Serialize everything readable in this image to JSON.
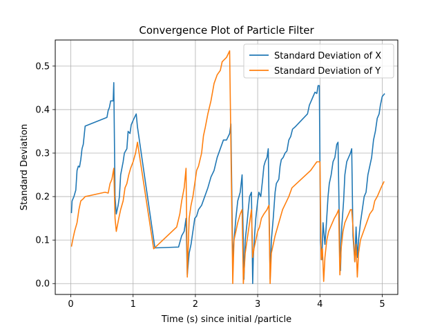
{
  "chart_data": {
    "type": "line",
    "title": "Convergence Plot of Particle Filter",
    "xlabel": "Time (s) since initial /particle",
    "ylabel": "Standard Deviation",
    "xlim": [
      -0.25,
      5.25
    ],
    "ylim": [
      -0.025,
      0.56
    ],
    "xticks": [
      0,
      1,
      2,
      3,
      4,
      5
    ],
    "yticks": [
      0.0,
      0.1,
      0.2,
      0.3,
      0.4,
      0.5
    ],
    "xtick_labels": [
      "0",
      "1",
      "2",
      "3",
      "4",
      "5"
    ],
    "ytick_labels": [
      "0.0",
      "0.1",
      "0.2",
      "0.3",
      "0.4",
      "0.5"
    ],
    "grid": true,
    "legend_position": "top-right",
    "series": [
      {
        "name": "Standard Deviation of X",
        "color": "#1f77b4",
        "points": [
          [
            0.01,
            0.162
          ],
          [
            0.02,
            0.19
          ],
          [
            0.05,
            0.2
          ],
          [
            0.08,
            0.215
          ],
          [
            0.1,
            0.26
          ],
          [
            0.12,
            0.27
          ],
          [
            0.14,
            0.268
          ],
          [
            0.16,
            0.285
          ],
          [
            0.18,
            0.31
          ],
          [
            0.2,
            0.32
          ],
          [
            0.23,
            0.362
          ],
          [
            0.58,
            0.382
          ],
          [
            0.6,
            0.398
          ],
          [
            0.62,
            0.405
          ],
          [
            0.64,
            0.42
          ],
          [
            0.66,
            0.42
          ],
          [
            0.68,
            0.42
          ],
          [
            0.69,
            0.462
          ],
          [
            0.71,
            0.2
          ],
          [
            0.73,
            0.16
          ],
          [
            0.76,
            0.18
          ],
          [
            0.78,
            0.2
          ],
          [
            0.8,
            0.25
          ],
          [
            0.84,
            0.28
          ],
          [
            0.86,
            0.3
          ],
          [
            0.9,
            0.31
          ],
          [
            0.92,
            0.35
          ],
          [
            0.95,
            0.345
          ],
          [
            0.97,
            0.365
          ],
          [
            1.0,
            0.375
          ],
          [
            1.05,
            0.39
          ],
          [
            1.07,
            0.36
          ],
          [
            1.35,
            0.082
          ],
          [
            1.73,
            0.084
          ],
          [
            1.78,
            0.11
          ],
          [
            1.82,
            0.12
          ],
          [
            1.85,
            0.15
          ],
          [
            1.87,
            0.02
          ],
          [
            1.9,
            0.07
          ],
          [
            1.93,
            0.09
          ],
          [
            1.96,
            0.12
          ],
          [
            1.99,
            0.15
          ],
          [
            2.02,
            0.155
          ],
          [
            2.05,
            0.17
          ],
          [
            2.1,
            0.18
          ],
          [
            2.15,
            0.2
          ],
          [
            2.2,
            0.22
          ],
          [
            2.25,
            0.245
          ],
          [
            2.3,
            0.26
          ],
          [
            2.35,
            0.29
          ],
          [
            2.4,
            0.31
          ],
          [
            2.45,
            0.33
          ],
          [
            2.5,
            0.33
          ],
          [
            2.55,
            0.345
          ],
          [
            2.57,
            0.367
          ],
          [
            2.6,
            0.05
          ],
          [
            2.62,
            0.1
          ],
          [
            2.65,
            0.15
          ],
          [
            2.68,
            0.19
          ],
          [
            2.72,
            0.21
          ],
          [
            2.75,
            0.25
          ],
          [
            2.78,
            0.01
          ],
          [
            2.8,
            0.1
          ],
          [
            2.83,
            0.14
          ],
          [
            2.87,
            0.2
          ],
          [
            2.9,
            0.21
          ],
          [
            2.92,
            0.0
          ],
          [
            2.93,
            0.06
          ],
          [
            2.95,
            0.11
          ],
          [
            2.97,
            0.15
          ],
          [
            3.0,
            0.19
          ],
          [
            3.02,
            0.21
          ],
          [
            3.05,
            0.2
          ],
          [
            3.08,
            0.24
          ],
          [
            3.1,
            0.27
          ],
          [
            3.12,
            0.28
          ],
          [
            3.15,
            0.29
          ],
          [
            3.17,
            0.31
          ],
          [
            3.2,
            0.01
          ],
          [
            3.22,
            0.1
          ],
          [
            3.25,
            0.15
          ],
          [
            3.28,
            0.21
          ],
          [
            3.3,
            0.23
          ],
          [
            3.34,
            0.24
          ],
          [
            3.36,
            0.27
          ],
          [
            3.38,
            0.285
          ],
          [
            3.41,
            0.29
          ],
          [
            3.44,
            0.3
          ],
          [
            3.47,
            0.305
          ],
          [
            3.5,
            0.33
          ],
          [
            3.53,
            0.338
          ],
          [
            3.56,
            0.355
          ],
          [
            3.6,
            0.36
          ],
          [
            3.8,
            0.39
          ],
          [
            3.83,
            0.41
          ],
          [
            3.86,
            0.42
          ],
          [
            3.89,
            0.43
          ],
          [
            3.92,
            0.44
          ],
          [
            3.95,
            0.437
          ],
          [
            3.97,
            0.455
          ],
          [
            3.99,
            0.455
          ],
          [
            4.01,
            0.1
          ],
          [
            4.03,
            0.055
          ],
          [
            4.05,
            0.14
          ],
          [
            4.08,
            0.09
          ],
          [
            4.1,
            0.13
          ],
          [
            4.13,
            0.2
          ],
          [
            4.15,
            0.23
          ],
          [
            4.18,
            0.25
          ],
          [
            4.21,
            0.28
          ],
          [
            4.24,
            0.29
          ],
          [
            4.27,
            0.32
          ],
          [
            4.29,
            0.325
          ],
          [
            4.31,
            0.15
          ],
          [
            4.33,
            0.03
          ],
          [
            4.35,
            0.13
          ],
          [
            4.38,
            0.19
          ],
          [
            4.4,
            0.25
          ],
          [
            4.43,
            0.28
          ],
          [
            4.46,
            0.29
          ],
          [
            4.49,
            0.3
          ],
          [
            4.51,
            0.31
          ],
          [
            4.53,
            0.11
          ],
          [
            4.56,
            0.05
          ],
          [
            4.58,
            0.13
          ],
          [
            4.6,
            0.06
          ],
          [
            4.62,
            0.1
          ],
          [
            4.65,
            0.14
          ],
          [
            4.68,
            0.17
          ],
          [
            4.71,
            0.2
          ],
          [
            4.74,
            0.21
          ],
          [
            4.77,
            0.25
          ],
          [
            4.8,
            0.27
          ],
          [
            4.83,
            0.29
          ],
          [
            4.86,
            0.33
          ],
          [
            4.89,
            0.35
          ],
          [
            4.92,
            0.38
          ],
          [
            4.95,
            0.39
          ],
          [
            4.97,
            0.41
          ],
          [
            5.0,
            0.43
          ],
          [
            5.04,
            0.437
          ]
        ]
      },
      {
        "name": "Standard Deviation of Y",
        "color": "#ff7f0e",
        "points": [
          [
            0.01,
            0.085
          ],
          [
            0.03,
            0.1
          ],
          [
            0.06,
            0.12
          ],
          [
            0.1,
            0.14
          ],
          [
            0.13,
            0.17
          ],
          [
            0.16,
            0.19
          ],
          [
            0.2,
            0.195
          ],
          [
            0.23,
            0.2
          ],
          [
            0.55,
            0.21
          ],
          [
            0.6,
            0.208
          ],
          [
            0.63,
            0.23
          ],
          [
            0.66,
            0.24
          ],
          [
            0.69,
            0.265
          ],
          [
            0.71,
            0.15
          ],
          [
            0.73,
            0.12
          ],
          [
            0.77,
            0.15
          ],
          [
            0.8,
            0.17
          ],
          [
            0.84,
            0.19
          ],
          [
            0.87,
            0.22
          ],
          [
            0.9,
            0.23
          ],
          [
            0.93,
            0.25
          ],
          [
            0.96,
            0.265
          ],
          [
            1.0,
            0.28
          ],
          [
            1.04,
            0.3
          ],
          [
            1.07,
            0.325
          ],
          [
            1.33,
            0.08
          ],
          [
            1.7,
            0.13
          ],
          [
            1.75,
            0.16
          ],
          [
            1.78,
            0.19
          ],
          [
            1.82,
            0.22
          ],
          [
            1.85,
            0.265
          ],
          [
            1.87,
            0.015
          ],
          [
            1.9,
            0.15
          ],
          [
            1.93,
            0.18
          ],
          [
            1.96,
            0.2
          ],
          [
            1.99,
            0.23
          ],
          [
            2.02,
            0.26
          ],
          [
            2.05,
            0.27
          ],
          [
            2.1,
            0.3
          ],
          [
            2.13,
            0.34
          ],
          [
            2.16,
            0.36
          ],
          [
            2.2,
            0.39
          ],
          [
            2.25,
            0.42
          ],
          [
            2.3,
            0.46
          ],
          [
            2.35,
            0.48
          ],
          [
            2.4,
            0.49
          ],
          [
            2.43,
            0.51
          ],
          [
            2.5,
            0.52
          ],
          [
            2.55,
            0.535
          ],
          [
            2.6,
            0.0
          ],
          [
            2.62,
            0.1
          ],
          [
            2.65,
            0.12
          ],
          [
            2.68,
            0.14
          ],
          [
            2.72,
            0.16
          ],
          [
            2.75,
            0.17
          ],
          [
            2.77,
            0.0
          ],
          [
            2.8,
            0.07
          ],
          [
            2.83,
            0.1
          ],
          [
            2.86,
            0.13
          ],
          [
            2.9,
            0.17
          ],
          [
            2.92,
            0.06
          ],
          [
            2.94,
            0.08
          ],
          [
            2.97,
            0.1
          ],
          [
            3.0,
            0.12
          ],
          [
            3.03,
            0.13
          ],
          [
            3.06,
            0.15
          ],
          [
            3.1,
            0.16
          ],
          [
            3.15,
            0.17
          ],
          [
            3.18,
            0.18
          ],
          [
            3.2,
            0.0
          ],
          [
            3.22,
            0.07
          ],
          [
            3.25,
            0.09
          ],
          [
            3.28,
            0.11
          ],
          [
            3.32,
            0.13
          ],
          [
            3.36,
            0.15
          ],
          [
            3.4,
            0.17
          ],
          [
            3.45,
            0.185
          ],
          [
            3.5,
            0.2
          ],
          [
            3.55,
            0.22
          ],
          [
            3.85,
            0.26
          ],
          [
            3.9,
            0.27
          ],
          [
            3.95,
            0.28
          ],
          [
            4.0,
            0.28
          ],
          [
            4.02,
            0.055
          ],
          [
            4.04,
            0.08
          ],
          [
            4.06,
            0.005
          ],
          [
            4.08,
            0.06
          ],
          [
            4.11,
            0.1
          ],
          [
            4.14,
            0.12
          ],
          [
            4.17,
            0.13
          ],
          [
            4.2,
            0.14
          ],
          [
            4.23,
            0.15
          ],
          [
            4.27,
            0.16
          ],
          [
            4.3,
            0.17
          ],
          [
            4.32,
            0.02
          ],
          [
            4.34,
            0.08
          ],
          [
            4.37,
            0.12
          ],
          [
            4.4,
            0.14
          ],
          [
            4.43,
            0.15
          ],
          [
            4.46,
            0.16
          ],
          [
            4.49,
            0.17
          ],
          [
            4.51,
            0.17
          ],
          [
            4.53,
            0.13
          ],
          [
            4.56,
            0.05
          ],
          [
            4.58,
            0.09
          ],
          [
            4.6,
            0.015
          ],
          [
            4.62,
            0.07
          ],
          [
            4.65,
            0.1
          ],
          [
            4.7,
            0.12
          ],
          [
            4.75,
            0.14
          ],
          [
            4.8,
            0.16
          ],
          [
            4.85,
            0.17
          ],
          [
            4.88,
            0.19
          ],
          [
            4.92,
            0.2
          ],
          [
            4.95,
            0.21
          ],
          [
            4.98,
            0.22
          ],
          [
            5.03,
            0.235
          ]
        ]
      }
    ]
  }
}
